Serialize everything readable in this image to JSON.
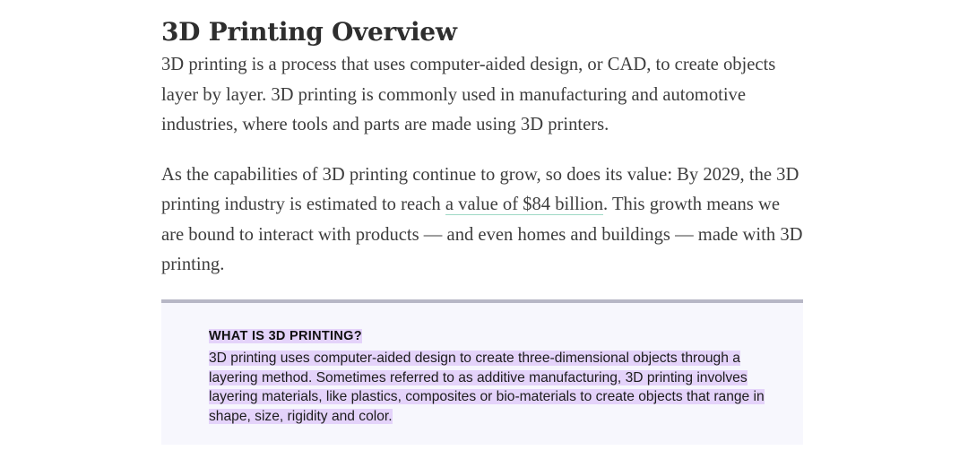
{
  "article": {
    "title": "3D Printing Overview",
    "paragraph1": "3D printing is a process that uses computer-aided design, or CAD, to create objects layer by layer. 3D printing is commonly used in manufacturing and automotive industries, where tools and parts are made using 3D printers.",
    "paragraph2_before_link": "As the capabilities of 3D printing continue to grow, so does its value: By 2029, the 3D printing industry is estimated to reach ",
    "paragraph2_link": "a value of $84 billion",
    "paragraph2_after_link": ". This growth means we are bound to interact with products — and even homes and buildings — made with 3D printing."
  },
  "callout": {
    "heading": "WHAT IS 3D PRINTING?",
    "body": "3D printing uses computer-aided design to create three-dimensional objects through a layering method. Sometimes referred to as additive manufacturing, 3D printing involves layering materials, like plastics, composites or bio-materials to create objects that range in shape, size, rigidity and color."
  },
  "colors": {
    "link_underline": "#9fd9c5",
    "highlight": "#e4d3fa",
    "callout_background": "#f7f7fd",
    "callout_border": "#b7b7c6"
  }
}
